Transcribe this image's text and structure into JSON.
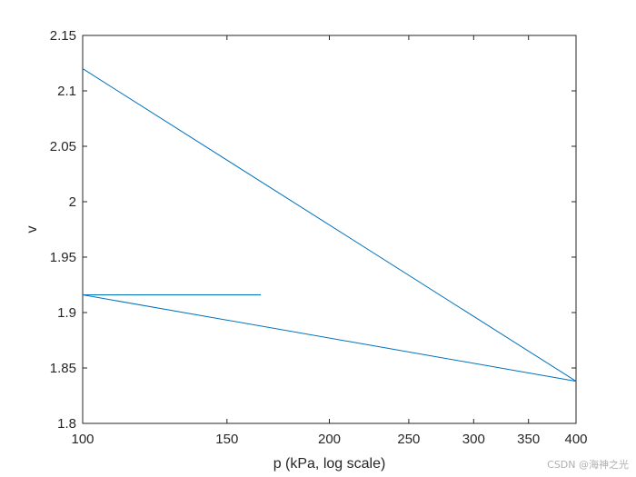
{
  "chart_data": {
    "type": "line",
    "title": "",
    "xlabel": "p (kPa, log scale)",
    "ylabel": "v",
    "xscale": "log",
    "xlim": [
      100,
      400
    ],
    "ylim": [
      1.8,
      2.15
    ],
    "xticks": [
      100,
      150,
      200,
      250,
      300,
      350,
      400
    ],
    "xtick_labels": [
      "100",
      "150",
      "200",
      "250",
      "300",
      "350",
      "400"
    ],
    "yticks": [
      1.8,
      1.85,
      1.9,
      1.95,
      2.0,
      2.05,
      2.1,
      2.15
    ],
    "ytick_labels": [
      "1.8",
      "1.85",
      "1.9",
      "1.95",
      "2",
      "2.05",
      "2.1",
      "2.15"
    ],
    "grid": false,
    "box": true,
    "line_color": "#0072BD",
    "series": [
      {
        "x": [
          100,
          400,
          100,
          165
        ],
        "y": [
          2.12,
          1.838,
          1.916,
          1.916
        ]
      }
    ]
  },
  "watermark": "CSDN @海神之光"
}
